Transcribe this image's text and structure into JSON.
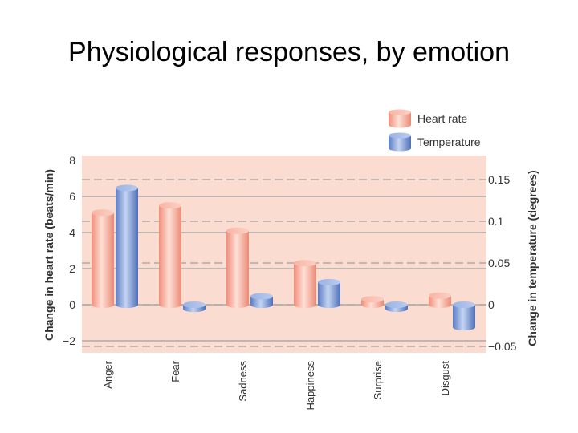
{
  "slide": {
    "title": "Physiological responses, by emotion"
  },
  "colors": {
    "plot_background": "#fbdcd0",
    "heart_rate": "#f4a493",
    "temperature": "#7c9ad6",
    "grid_solid": "#9e9e9e",
    "grid_dashed": "#9e9e9e"
  },
  "chart_data": {
    "type": "bar",
    "categories": [
      "Anger",
      "Fear",
      "Sadness",
      "Happiness",
      "Surprise",
      "Disgust"
    ],
    "series": [
      {
        "name": "Heart rate",
        "axis": "left",
        "values": [
          5.1,
          5.5,
          4.1,
          2.3,
          0.3,
          0.5
        ]
      },
      {
        "name": "Temperature",
        "axis": "right",
        "values": [
          0.14,
          -0.005,
          0.01,
          0.027,
          -0.002,
          -0.027
        ]
      }
    ],
    "ylabel": "Change in heart rate (beats/min)",
    "y2label": "Change in temperature (degrees)",
    "ylim": [
      -2.4,
      8
    ],
    "y2lim": [
      -0.053,
      0.175
    ],
    "yticks": [
      -2,
      0,
      2,
      4,
      6,
      8
    ],
    "y2ticks": [
      -0.05,
      0,
      0.05,
      0.1,
      0.15
    ],
    "ytick_labels": [
      "−2",
      "0",
      "2",
      "4",
      "6",
      "8"
    ],
    "y2tick_labels": [
      "−0.05",
      "0",
      "0.05",
      "0.1",
      "0.15"
    ],
    "grid": true,
    "legend_position": "top-right",
    "bar_style": "cylinder"
  }
}
